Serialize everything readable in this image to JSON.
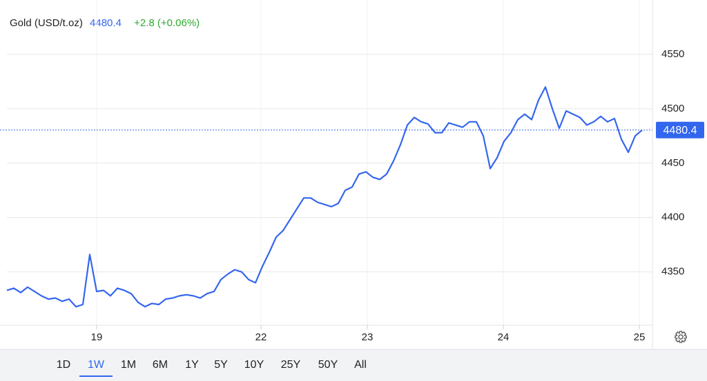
{
  "chart_data": {
    "type": "line",
    "title": "Gold (USD/t.oz)",
    "change": "+2.8 (+0.06%)",
    "last_price": 4480.4,
    "color": "#3366ee",
    "x": [
      0,
      1,
      2,
      3,
      4,
      5,
      6,
      7,
      8,
      9,
      10,
      11,
      12,
      13,
      14,
      15,
      16,
      17,
      18,
      19,
      20,
      21,
      22,
      23,
      24,
      25,
      26,
      27,
      28,
      29,
      30,
      31,
      32,
      33,
      34,
      35,
      36,
      37,
      38,
      39,
      40,
      41,
      42,
      43,
      44,
      45,
      46,
      47,
      48,
      49,
      50,
      51,
      52,
      53,
      54,
      55,
      56,
      57,
      58,
      59,
      60,
      61,
      62,
      63,
      64,
      65,
      66,
      67,
      68,
      69,
      70,
      71,
      72,
      73,
      74,
      75,
      76,
      77,
      78,
      79,
      80,
      81,
      82,
      83,
      84,
      85,
      86,
      87,
      88,
      89,
      90,
      91,
      92
    ],
    "values": [
      4333,
      4335,
      4331,
      4336,
      4332,
      4328,
      4325,
      4326,
      4323,
      4325,
      4318,
      4320,
      4366,
      4332,
      4333,
      4328,
      4335,
      4333,
      4330,
      4322,
      4318,
      4321,
      4320,
      4325,
      4326,
      4328,
      4329,
      4328,
      4326,
      4330,
      4332,
      4343,
      4348,
      4352,
      4350,
      4343,
      4340,
      4355,
      4368,
      4382,
      4388,
      4398,
      4408,
      4418,
      4418,
      4414,
      4412,
      4410,
      4413,
      4425,
      4428,
      4440,
      4442,
      4437,
      4435,
      4440,
      4452,
      4467,
      4485,
      4492,
      4488,
      4486,
      4478,
      4478,
      4487,
      4485,
      4483,
      4488,
      4488,
      4475,
      4445,
      4455,
      4470,
      4478,
      4490,
      4495,
      4490,
      4508,
      4520,
      4500,
      4482,
      4498,
      4495,
      4492,
      4485,
      4488,
      4493,
      4488,
      4491,
      4472,
      4460,
      4475,
      4480.4
    ],
    "xlim": [
      0,
      93.5
    ],
    "xticks": [
      {
        "value": 13,
        "label": "19"
      },
      {
        "value": 36.8,
        "label": "22"
      },
      {
        "value": 52.2,
        "label": "23"
      },
      {
        "value": 71.9,
        "label": "24"
      },
      {
        "value": 91.6,
        "label": "25"
      }
    ],
    "ylim": [
      4301,
      4600
    ],
    "yticks": [
      4350,
      4400,
      4450,
      4500,
      4550
    ],
    "grid": true
  },
  "range_buttons": [
    "1D",
    "1W",
    "1M",
    "6M",
    "1Y",
    "5Y",
    "10Y",
    "25Y",
    "50Y",
    "All"
  ],
  "selected_range": 1
}
